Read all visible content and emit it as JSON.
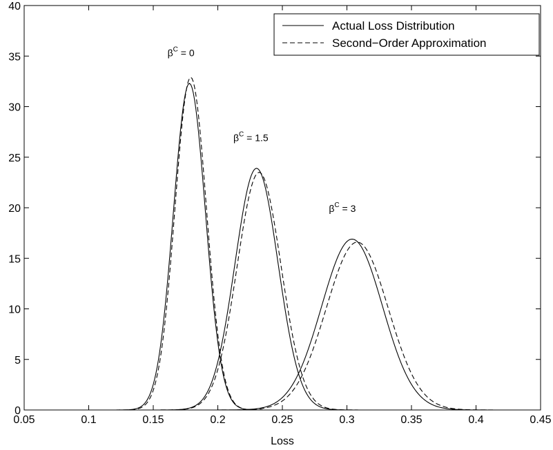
{
  "chart_data": {
    "type": "line",
    "title": "",
    "xlabel": "Loss",
    "ylabel": "",
    "xlim": [
      0.05,
      0.45
    ],
    "ylim": [
      0,
      40
    ],
    "xticks": [
      "0.05",
      "0.1",
      "0.15",
      "0.2",
      "0.25",
      "0.3",
      "0.35",
      "0.4",
      "0.45"
    ],
    "yticks": [
      "0",
      "5",
      "10",
      "15",
      "20",
      "25",
      "30",
      "35",
      "40"
    ],
    "grid": false,
    "legend_position": "top-right",
    "series": [
      {
        "name": "Actual Loss Distribution",
        "style": "solid",
        "curves": [
          {
            "mean": 0.178,
            "sd": 0.0124,
            "peak": 32.3
          },
          {
            "mean": 0.23,
            "sd": 0.0167,
            "peak": 23.9
          },
          {
            "mean": 0.304,
            "sd": 0.0236,
            "peak": 16.9
          }
        ]
      },
      {
        "name": "Second−Order Approximation",
        "style": "dashed",
        "curves": [
          {
            "mean": 0.179,
            "sd": 0.0122,
            "peak": 32.9
          },
          {
            "mean": 0.232,
            "sd": 0.017,
            "peak": 23.5
          },
          {
            "mean": 0.308,
            "sd": 0.024,
            "peak": 16.6
          }
        ]
      }
    ],
    "annotations": [
      {
        "base": "β",
        "sup": "C",
        "text": " = 0",
        "x": 0.161,
        "y": 35.0
      },
      {
        "base": "β",
        "sup": "C",
        "text": " = 1.5",
        "x": 0.212,
        "y": 26.6
      },
      {
        "base": "β",
        "sup": "C",
        "text": " = 3",
        "x": 0.286,
        "y": 19.6
      }
    ]
  }
}
